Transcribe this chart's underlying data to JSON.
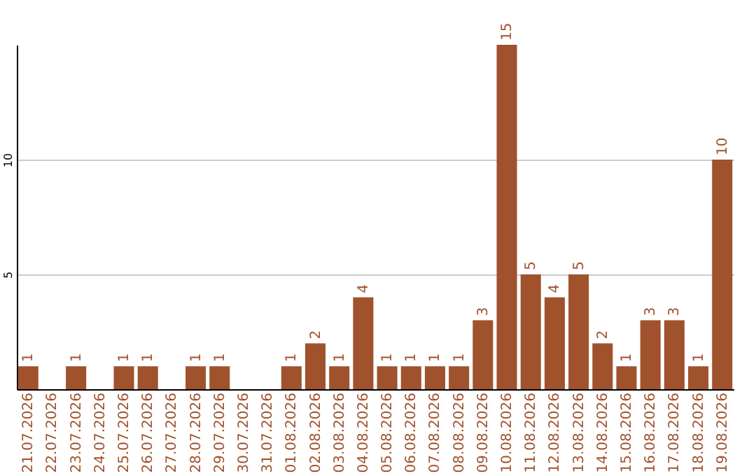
{
  "chart_data": {
    "type": "bar",
    "categories": [
      "21.07.2026",
      "22.07.2026",
      "23.07.2026",
      "24.07.2026",
      "25.07.2026",
      "26.07.2026",
      "27.07.2026",
      "28.07.2026",
      "29.07.2026",
      "30.07.2026",
      "31.07.2026",
      "01.08.2026",
      "02.08.2026",
      "03.08.2026",
      "04.08.2026",
      "05.08.2026",
      "06.08.2026",
      "07.08.2026",
      "08.08.2026",
      "09.08.2026",
      "10.08.2026",
      "11.08.2026",
      "12.08.2026",
      "13.08.2026",
      "14.08.2026",
      "15.08.2026",
      "16.08.2026",
      "17.08.2026",
      "18.08.2026",
      "19.08.2026"
    ],
    "values": [
      1,
      null,
      1,
      null,
      1,
      1,
      null,
      1,
      1,
      null,
      null,
      1,
      2,
      1,
      4,
      1,
      1,
      1,
      1,
      3,
      15,
      5,
      4,
      5,
      2,
      1,
      3,
      3,
      1,
      10
    ],
    "color": "#a0522d",
    "ylim": [
      0,
      15
    ],
    "yticks": [
      5,
      10
    ],
    "grid": "y",
    "data_labels": true
  }
}
